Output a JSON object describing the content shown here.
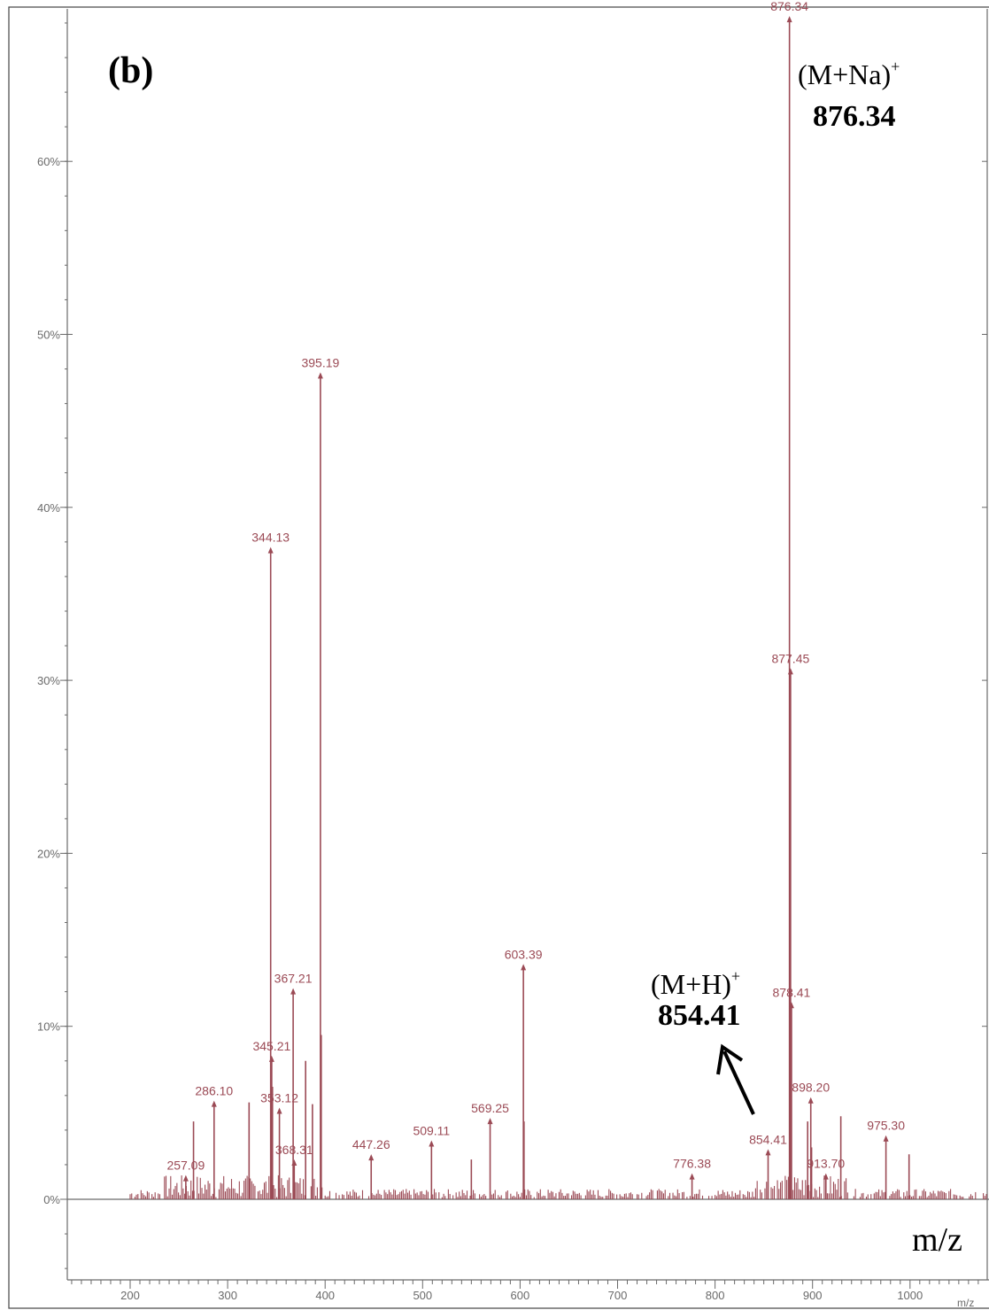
{
  "chart_data": {
    "type": "bar",
    "panel_label": "(b)",
    "x_unit_label": "m/z",
    "x_unit_small": "m/z",
    "xlim": [
      135,
      1200
    ],
    "ylim": [
      -5,
      69
    ],
    "x_ticks": [
      200,
      300,
      400,
      500,
      600,
      700,
      800,
      900,
      1000
    ],
    "y_ticks": [
      {
        "value": 0,
        "label": "0%"
      },
      {
        "value": 10,
        "label": "10%"
      },
      {
        "value": 20,
        "label": "20%"
      },
      {
        "value": 30,
        "label": "30%"
      },
      {
        "value": 40,
        "label": "40%"
      },
      {
        "value": 50,
        "label": "50%"
      },
      {
        "value": 60,
        "label": "60%"
      }
    ],
    "labeled_peaks": [
      {
        "mz": 257.09,
        "intensity": 1.3,
        "label": "257.09"
      },
      {
        "mz": 286.1,
        "intensity": 5.6,
        "label": "286.10"
      },
      {
        "mz": 344.13,
        "intensity": 37.6,
        "label": "344.13"
      },
      {
        "mz": 345.21,
        "intensity": 8.2,
        "label": "345.21"
      },
      {
        "mz": 353.12,
        "intensity": 5.2,
        "label": "353.12"
      },
      {
        "mz": 367.21,
        "intensity": 12.1,
        "label": "367.21"
      },
      {
        "mz": 368.31,
        "intensity": 2.2,
        "label": "368.31"
      },
      {
        "mz": 395.19,
        "intensity": 47.7,
        "label": "395.19"
      },
      {
        "mz": 447.26,
        "intensity": 2.5,
        "label": "447.26"
      },
      {
        "mz": 509.11,
        "intensity": 3.3,
        "label": "509.11"
      },
      {
        "mz": 569.25,
        "intensity": 4.6,
        "label": "569.25"
      },
      {
        "mz": 603.39,
        "intensity": 13.5,
        "label": "603.39"
      },
      {
        "mz": 776.38,
        "intensity": 1.4,
        "label": "776.38"
      },
      {
        "mz": 854.41,
        "intensity": 2.8,
        "label": "854.41"
      },
      {
        "mz": 876.34,
        "intensity": 68.3,
        "label": "876.34"
      },
      {
        "mz": 877.45,
        "intensity": 30.6,
        "label": "877.45"
      },
      {
        "mz": 878.41,
        "intensity": 11.3,
        "label": "878.41"
      },
      {
        "mz": 898.2,
        "intensity": 5.8,
        "label": "898.20"
      },
      {
        "mz": 913.7,
        "intensity": 1.4,
        "label": "913.70"
      },
      {
        "mz": 975.3,
        "intensity": 3.6,
        "label": "975.30"
      }
    ],
    "unlabeled_peaks": [
      {
        "mz": 265,
        "intensity": 4.5
      },
      {
        "mz": 322,
        "intensity": 5.6
      },
      {
        "mz": 346,
        "intensity": 6.5
      },
      {
        "mz": 380,
        "intensity": 8.0
      },
      {
        "mz": 387,
        "intensity": 5.5
      },
      {
        "mz": 396,
        "intensity": 9.5
      },
      {
        "mz": 550,
        "intensity": 2.3
      },
      {
        "mz": 604,
        "intensity": 4.5
      },
      {
        "mz": 878,
        "intensity": 4.0
      },
      {
        "mz": 895,
        "intensity": 4.5
      },
      {
        "mz": 899,
        "intensity": 3.0
      },
      {
        "mz": 929,
        "intensity": 4.8
      },
      {
        "mz": 999,
        "intensity": 2.6
      }
    ],
    "annotations": [
      {
        "ion": "(M+Na)",
        "charge": "+",
        "mass": "876.34"
      },
      {
        "ion": "(M+H)",
        "charge": "+",
        "mass": "854.41"
      }
    ]
  }
}
